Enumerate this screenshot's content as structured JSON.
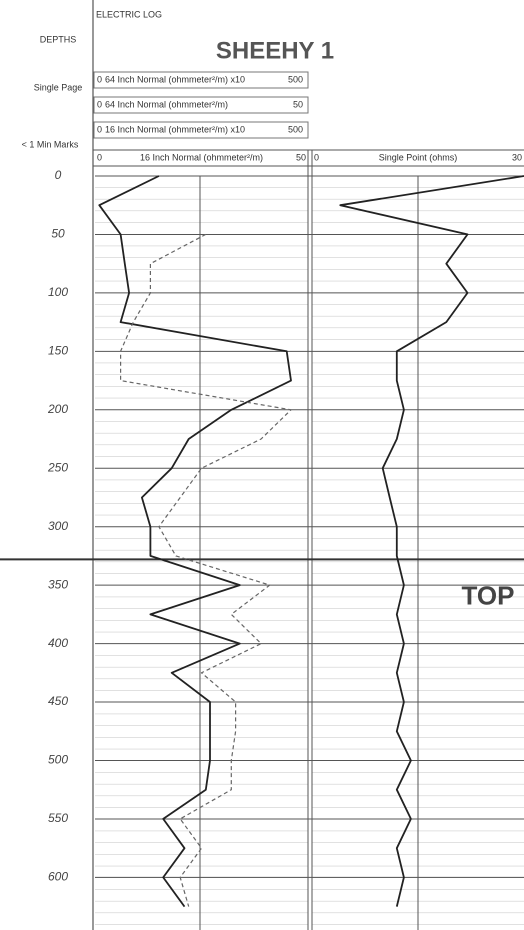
{
  "chart_data": {
    "type": "line",
    "report_label": "ELECTRIC LOG",
    "title": "SHEEHY 1",
    "depth_heading": "DEPTHS",
    "page_label": "Single Page",
    "marks_label": "< 1 Min Marks",
    "header_scales": [
      {
        "min": "0",
        "label": "64 Inch Normal (ohmmeter²/m) x10",
        "max": "500"
      },
      {
        "min": "0",
        "label": "64 Inch Normal (ohmmeter²/m)",
        "max": "50"
      },
      {
        "min": "0",
        "label": "16 Inch Normal (ohmmeter²/m) x10",
        "max": "500"
      }
    ],
    "ylim": [
      0,
      645
    ],
    "yticks": [
      0,
      50,
      100,
      150,
      200,
      250,
      300,
      350,
      400,
      450,
      500,
      550,
      600
    ],
    "depths": [
      0,
      25,
      50,
      75,
      100,
      125,
      150,
      175,
      200,
      225,
      250,
      275,
      300,
      325,
      350,
      375,
      400,
      425,
      450,
      475,
      500,
      525,
      550,
      575,
      600,
      625
    ],
    "top_marker": {
      "depth": 328,
      "label": "TOP"
    },
    "tracks": [
      {
        "xlim": [
          0,
          50
        ],
        "xticks": [
          0,
          50
        ],
        "scale_label": "16 Inch Normal (ohmmeter²/m)",
        "series": [
          {
            "name": "16 Inch Normal",
            "color": "#222222",
            "dashed": false,
            "values": [
              15,
              1,
              6,
              7,
              8,
              6,
              45,
              46,
              32,
              22,
              18,
              11,
              13,
              13,
              34,
              13,
              34,
              18,
              27,
              27,
              27,
              26,
              16,
              21,
              16,
              21
            ]
          },
          {
            "name": "64 Inch Normal",
            "color": "#666666",
            "dashed": true,
            "values": [
              null,
              null,
              26,
              13,
              13,
              9,
              6,
              6,
              46,
              39,
              25,
              20,
              15,
              19,
              41,
              32,
              39,
              25,
              33,
              33,
              32,
              32,
              20,
              25,
              20,
              22
            ]
          }
        ]
      },
      {
        "xlim": [
          0,
          30
        ],
        "xticks": [
          0,
          30
        ],
        "scale_label": "Single Point (ohms)",
        "series": [
          {
            "name": "Single Point",
            "color": "#222222",
            "dashed": false,
            "values": [
              30,
              4,
              22,
              19,
              22,
              19,
              12,
              12,
              13,
              12,
              10,
              11,
              12,
              12,
              13,
              12,
              13,
              12,
              13,
              12,
              14,
              12,
              14,
              12,
              13,
              12
            ]
          }
        ]
      }
    ]
  }
}
